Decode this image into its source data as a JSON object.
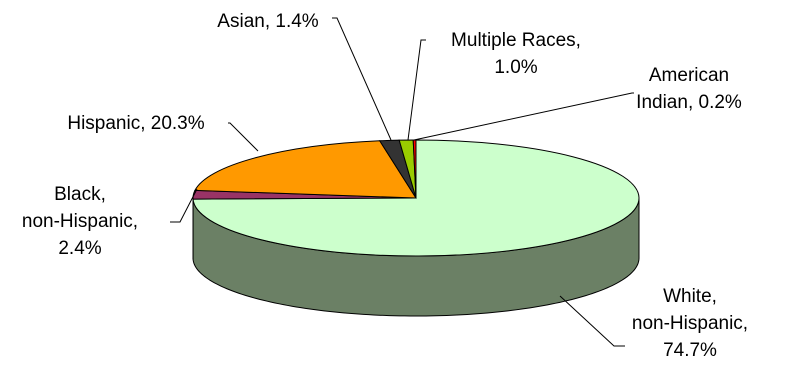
{
  "chart_data": {
    "type": "pie",
    "style": "3d",
    "title": "",
    "slices": [
      {
        "name": "White, non-Hispanic",
        "value": 74.7,
        "label_lines": [
          "White,",
          "non-Hispanic,",
          "74.7%"
        ],
        "color": "#ccffcc",
        "side_color": "#6b8065"
      },
      {
        "name": "Black, non-Hispanic",
        "value": 2.4,
        "label_lines": [
          "Black,",
          "non-Hispanic,",
          "2.4%"
        ],
        "color": "#993366",
        "side_color": "#5c1f3d"
      },
      {
        "name": "Hispanic",
        "value": 20.3,
        "label_lines": [
          "Hispanic, 20.3%"
        ],
        "color": "#ff9900",
        "side_color": "#995c00"
      },
      {
        "name": "Asian",
        "value": 1.4,
        "label_lines": [
          "Asian, 1.4%"
        ],
        "color": "#333333",
        "side_color": "#1a1a1a"
      },
      {
        "name": "Multiple Races",
        "value": 1.0,
        "label_lines": [
          "Multiple Races,",
          "1.0%"
        ],
        "color": "#99cc00",
        "side_color": "#5c7a00"
      },
      {
        "name": "American Indian",
        "value": 0.2,
        "label_lines": [
          "American",
          "Indian, 0.2%"
        ],
        "color": "#ff0000",
        "side_color": "#990000"
      }
    ]
  }
}
